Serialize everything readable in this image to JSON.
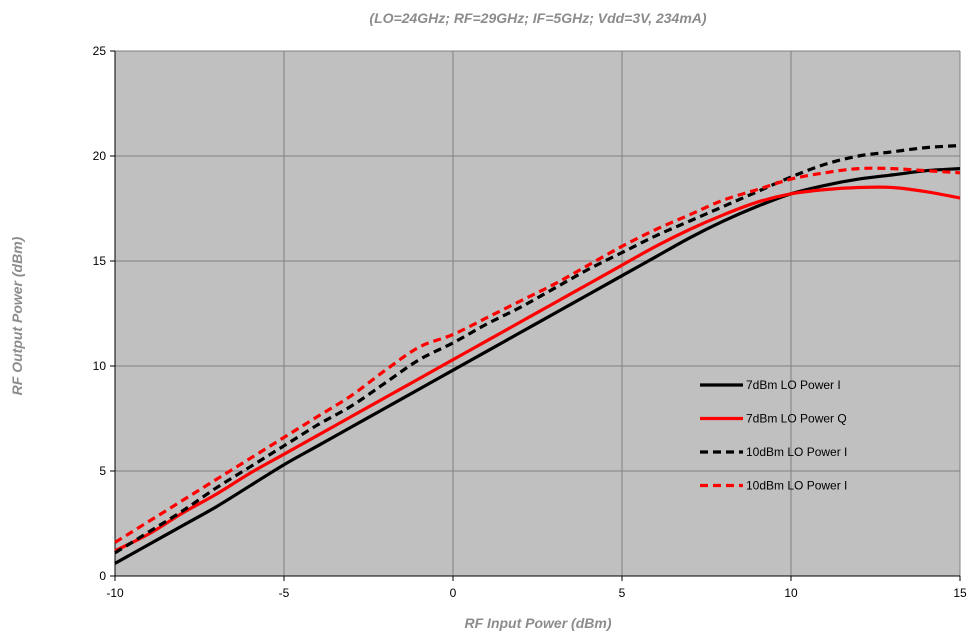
{
  "chart_data": {
    "type": "line",
    "subtitle": "(LO=24GHz; RF=29GHz; IF=5GHz; Vdd=3V, 234mA)",
    "xlabel": "RF Input Power (dBm)",
    "ylabel": "RF Output Power (dBm)",
    "xlim": [
      -10,
      15
    ],
    "ylim": [
      0,
      25
    ],
    "xticks": [
      -10,
      -5,
      0,
      5,
      10,
      15
    ],
    "yticks": [
      0,
      5,
      10,
      15,
      20,
      25
    ],
    "grid": true,
    "plot_background": "#c0c0c0",
    "legend_position": "lower-right",
    "x": [
      -10,
      -9,
      -8,
      -7,
      -6,
      -5,
      -4,
      -3,
      -2,
      -1,
      0,
      1,
      2,
      3,
      4,
      5,
      6,
      7,
      8,
      9,
      10,
      11,
      12,
      13,
      14,
      15
    ],
    "series": [
      {
        "name": "7dBm LO Power I",
        "color": "#000000",
        "dash": "solid",
        "values": [
          0.6,
          1.5,
          2.4,
          3.3,
          4.3,
          5.3,
          6.2,
          7.1,
          8.0,
          8.9,
          9.8,
          10.7,
          11.6,
          12.5,
          13.4,
          14.3,
          15.2,
          16.1,
          16.9,
          17.6,
          18.2,
          18.6,
          18.9,
          19.1,
          19.3,
          19.4
        ]
      },
      {
        "name": "7dBm LO Power Q",
        "color": "#ff0000",
        "dash": "solid",
        "values": [
          1.2,
          2.0,
          3.0,
          3.9,
          4.9,
          5.8,
          6.7,
          7.6,
          8.5,
          9.4,
          10.3,
          11.2,
          12.1,
          13.0,
          13.9,
          14.8,
          15.7,
          16.5,
          17.2,
          17.8,
          18.2,
          18.4,
          18.5,
          18.5,
          18.3,
          18.0
        ]
      },
      {
        "name": "10dBm LO Power I",
        "color": "#000000",
        "dash": "dashed",
        "values": [
          1.1,
          2.1,
          3.1,
          4.2,
          5.2,
          6.2,
          7.2,
          8.1,
          9.2,
          10.3,
          11.1,
          12.0,
          12.8,
          13.7,
          14.6,
          15.4,
          16.2,
          16.9,
          17.6,
          18.3,
          19.0,
          19.6,
          20.0,
          20.2,
          20.4,
          20.5
        ]
      },
      {
        "name": "10dBm LO Power I",
        "color": "#ff0000",
        "dash": "dashed",
        "values": [
          1.6,
          2.6,
          3.6,
          4.6,
          5.6,
          6.6,
          7.6,
          8.6,
          9.8,
          10.9,
          11.5,
          12.3,
          13.1,
          13.9,
          14.8,
          15.7,
          16.5,
          17.2,
          17.9,
          18.4,
          18.9,
          19.2,
          19.4,
          19.4,
          19.3,
          19.2
        ]
      }
    ]
  }
}
